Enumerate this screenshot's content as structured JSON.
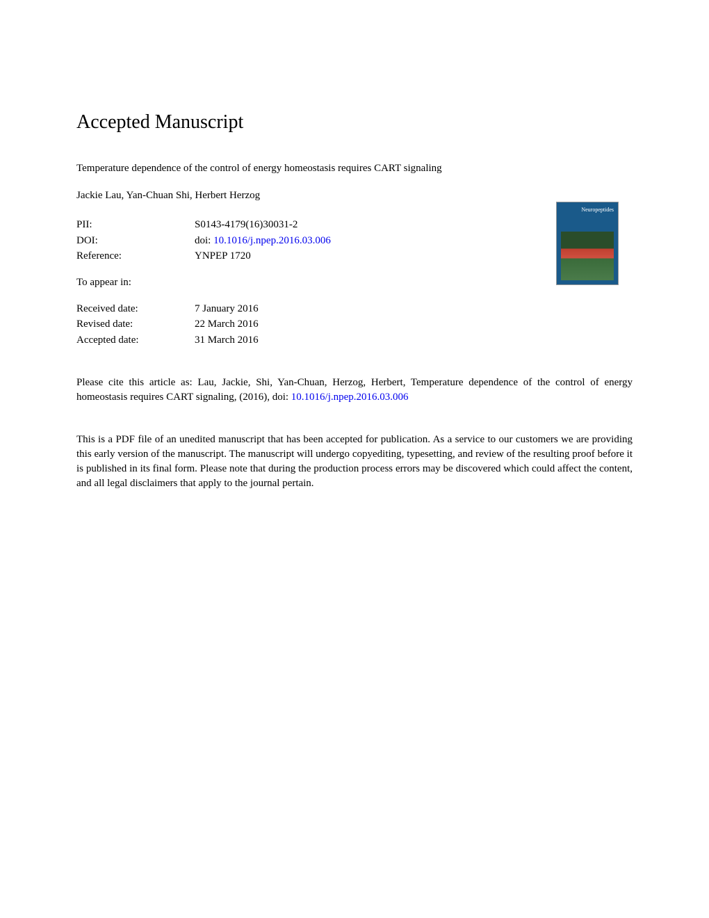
{
  "heading": "Accepted Manuscript",
  "article_title": "Temperature dependence of the control of energy homeostasis requires CART signaling",
  "authors": "Jackie Lau, Yan-Chuan Shi, Herbert Herzog",
  "meta": {
    "pii_label": "PII:",
    "pii_value": "S0143-4179(16)30031-2",
    "doi_label": "DOI:",
    "doi_prefix": "doi: ",
    "doi_link": "10.1016/j.npep.2016.03.006",
    "reference_label": "Reference:",
    "reference_value": "YNPEP 1720"
  },
  "appear_in": "To appear in:",
  "dates": {
    "received_label": "Received date:",
    "received_value": "7 January 2016",
    "revised_label": "Revised date:",
    "revised_value": "22 March 2016",
    "accepted_label": "Accepted date:",
    "accepted_value": "31 March 2016"
  },
  "citation": {
    "text": "Please cite this article as: Lau, Jackie, Shi, Yan-Chuan, Herzog, Herbert, Temperature dependence of the control of energy homeostasis requires CART signaling, (2016), doi: ",
    "link": "10.1016/j.npep.2016.03.006"
  },
  "disclaimer": "This is a PDF file of an unedited manuscript that has been accepted for publication. As a service to our customers we are providing this early version of the manuscript. The manuscript will undergo copyediting, typesetting, and review of the resulting proof before it is published in its final form. Please note that during the production process errors may be discovered which could affect the content, and all legal disclaimers that apply to the journal pertain.",
  "journal_cover": {
    "label": "Neuropeptides",
    "background_color": "#1a5a8a"
  }
}
